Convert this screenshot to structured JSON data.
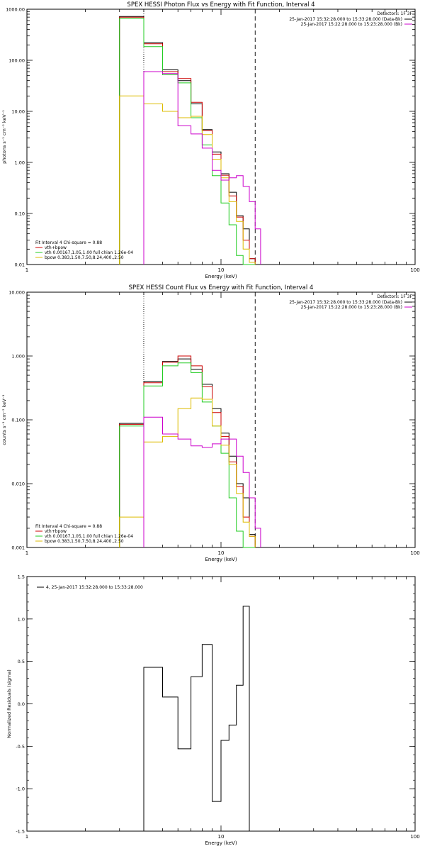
{
  "colors": {
    "data": "#000000",
    "total": "#cc0000",
    "vth": "#22cc22",
    "bpow": "#ddbb00",
    "background": "#cc00cc"
  },
  "chart_data": [
    {
      "type": "line",
      "title": "SPEX HESSI Photon Flux vs Energy with Fit Function, Interval 4",
      "xlabel": "Energy (keV)",
      "ylabel": "photons s⁻¹ cm⁻² keV⁻¹",
      "xscale": "log",
      "yscale": "log",
      "xlim": [
        1,
        100
      ],
      "ylim": [
        0.01,
        1000
      ],
      "xticks": [
        "1",
        "10",
        "100"
      ],
      "yticks": [
        "0.01",
        "0.10",
        "1.00",
        "10.00",
        "100.00",
        "1000.00"
      ],
      "detectors": "Detectors: 1F 3F",
      "legend_right": [
        "25-Jan-2017 15:32:28.000 to 15:33:28.000 (Data-Bk)",
        "25-Jan-2017 15:22:28.000 to 15:23:28.000 (Bk)"
      ],
      "legend_left": [
        "Fit Interval  4   Chi-square = 0.88",
        "vth+bpow",
        "vth 0.00167,1.05,1.00  full chian 1.26e-04",
        "bpow 0.383,1.50,7.50,8.24,400.,2.50"
      ],
      "vlines": [
        {
          "x": 4.0,
          "style": "dotted"
        },
        {
          "x": 15.0,
          "style": "dashed"
        }
      ],
      "edges": [
        3,
        4,
        5,
        6,
        7,
        8,
        9,
        10,
        11,
        12,
        13,
        14,
        15,
        16,
        17
      ],
      "series": [
        {
          "name": "25-Jan-2017 15:32:28.000 to 15:33:28.000 (Data-Bk)",
          "color": "#000000",
          "start": 0,
          "values": [
            720,
            220,
            65,
            40,
            14,
            4.4,
            1.6,
            0.6,
            0.26,
            0.09,
            0.05,
            0.013
          ]
        },
        {
          "name": "vth+bpow",
          "color": "#cc0000",
          "start": 0,
          "values": [
            700,
            210,
            60,
            44,
            15,
            4.2,
            1.45,
            0.56,
            0.22,
            0.085,
            0.03,
            0.013
          ]
        },
        {
          "name": "vth 0.00167,1.05,1.00  full chian 1.26e-04",
          "color": "#22cc22",
          "start": 0,
          "values": [
            660,
            185,
            52,
            36,
            7.5,
            2.2,
            0.55,
            0.16,
            0.06,
            0.015,
            0.01,
            0.01
          ]
        },
        {
          "name": "bpow 0.383,1.50,7.50,8.24,400.,2.50",
          "color": "#ddbb00",
          "start": 0,
          "values": [
            20,
            14,
            10,
            7.5,
            8,
            3.5,
            1.15,
            0.5,
            0.17,
            0.07,
            0.02,
            0.011
          ]
        },
        {
          "name": "25-Jan-2017 15:22:28.000 to 15:23:28.000 (Bk)",
          "color": "#cc00cc",
          "start": 1,
          "values": [
            60,
            55,
            5.2,
            3.6,
            1.9,
            0.7,
            0.45,
            0.5,
            0.55,
            0.34,
            0.17,
            0.05
          ]
        }
      ]
    },
    {
      "type": "line",
      "title": "SPEX HESSI Count Flux vs Energy with Fit Function, Interval 4",
      "xlabel": "Energy (keV)",
      "ylabel": "counts s⁻¹ cm⁻² keV⁻¹",
      "xscale": "log",
      "yscale": "log",
      "xlim": [
        1,
        100
      ],
      "ylim": [
        0.001,
        10
      ],
      "xticks": [
        "1",
        "10",
        "100"
      ],
      "yticks": [
        "0.001",
        "0.010",
        "0.100",
        "1.000",
        "10.000"
      ],
      "detectors": "Detectors: 1F 3F",
      "legend_right": [
        "25-Jan-2017 15:32:28.000 to 15:33:28.000 (Data-Bk)",
        "25-Jan-2017 15:22:28.000 to 15:23:28.000 (Bk)"
      ],
      "legend_left": [
        "Fit Interval  4   Chi-square = 0.88",
        "vth+bpow",
        "vth 0.00167,1.05,1.00  full chian 1.26e-04",
        "bpow 0.383,1.50,7.50,8.24,400.,2.50"
      ],
      "vlines": [
        {
          "x": 4.0,
          "style": "dotted"
        },
        {
          "x": 15.0,
          "style": "dashed"
        }
      ],
      "edges": [
        3,
        4,
        5,
        6,
        7,
        8,
        9,
        10,
        11,
        12,
        13,
        14,
        15,
        16,
        17
      ],
      "series": [
        {
          "name": "25-Jan-2017 15:32:28.000 to 15:33:28.000 (Data-Bk)",
          "color": "#000000",
          "start": 0,
          "values": [
            0.088,
            0.4,
            0.82,
            0.9,
            0.62,
            0.36,
            0.15,
            0.062,
            0.027,
            0.01,
            0.006,
            0.0016
          ]
        },
        {
          "name": "vth+bpow",
          "color": "#cc0000",
          "start": 0,
          "values": [
            0.085,
            0.38,
            0.8,
            1.0,
            0.7,
            0.33,
            0.13,
            0.055,
            0.022,
            0.009,
            0.003,
            0.0015
          ]
        },
        {
          "name": "vth 0.00167,1.05,1.00  full chian 1.26e-04",
          "color": "#22cc22",
          "start": 0,
          "values": [
            0.08,
            0.34,
            0.7,
            0.78,
            0.55,
            0.19,
            0.08,
            0.03,
            0.006,
            0.0018,
            0.001,
            0.001
          ]
        },
        {
          "name": "bpow 0.383,1.50,7.50,8.24,400.,2.50",
          "color": "#ddbb00",
          "start": 0,
          "values": [
            0.003,
            0.045,
            0.055,
            0.15,
            0.22,
            0.21,
            0.08,
            0.04,
            0.02,
            0.007,
            0.0025,
            0.0015
          ]
        },
        {
          "name": "25-Jan-2017 15:22:28.000 to 15:23:28.000 (Bk)",
          "color": "#cc00cc",
          "start": 1,
          "values": [
            0.11,
            0.06,
            0.05,
            0.039,
            0.037,
            0.042,
            0.05,
            0.05,
            0.027,
            0.015,
            0.006,
            0.002
          ]
        }
      ]
    },
    {
      "type": "line",
      "title": "",
      "xlabel": "Energy (keV)",
      "ylabel": "Normalized Residuals (sigma)",
      "xscale": "log",
      "yscale": "linear",
      "xlim": [
        1,
        100
      ],
      "ylim": [
        -1.5,
        1.5
      ],
      "xticks": [
        "1",
        "10",
        "100"
      ],
      "yticks": [
        "-1.5",
        "-1.0",
        "-0.5",
        "0.0",
        "0.5",
        "1.0",
        "1.5"
      ],
      "legend_left": [
        "4, 25-Jan-2017 15:32:28.000 to 15:33:28.000"
      ],
      "edges": [
        4,
        5,
        6,
        7,
        8,
        9,
        10,
        11,
        12,
        13,
        14,
        15
      ],
      "series": [
        {
          "name": "4, 25-Jan-2017 15:32:28.000 to 15:33:28.000",
          "color": "#000000",
          "start": 0,
          "values": [
            0.43,
            0.08,
            -0.53,
            0.32,
            0.7,
            -1.15,
            -0.43,
            -0.25,
            0.22,
            1.15
          ]
        }
      ]
    }
  ]
}
